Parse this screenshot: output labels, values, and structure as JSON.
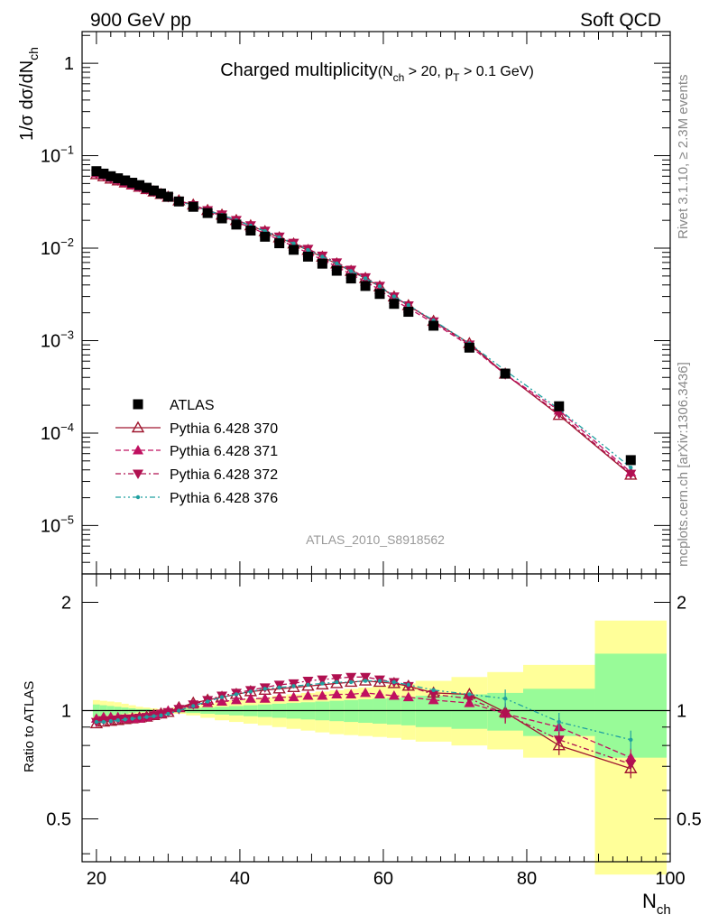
{
  "header": {
    "left": "900 GeV pp",
    "right": "Soft QCD"
  },
  "title": {
    "main": "Charged multiplicity",
    "paren_open": "(N",
    "sub1": "ch",
    "mid": " > 20, p",
    "sub2": "T",
    "end": " > 0.1 GeV)"
  },
  "side_texts": {
    "rivet": "Rivet 3.1.10, ≥ 2.3M events",
    "mcplots": "mcplots.cern.ch [arXiv:1306.3436]"
  },
  "analysis_label": "ATLAS_2010_S8918562",
  "axes": {
    "ylabel_main": "1/σ dσ/dN",
    "ylabel_main_sub": "ch",
    "ylabel_ratio": "Ratio to ATLAS",
    "xlabel": "N",
    "xlabel_sub": "ch",
    "xticks": [
      "20",
      "40",
      "60",
      "80",
      "100"
    ],
    "yticks_main": [
      {
        "base": "1",
        "exp": ""
      },
      {
        "base": "10",
        "exp": "−1"
      },
      {
        "base": "10",
        "exp": "−2"
      },
      {
        "base": "10",
        "exp": "−3"
      },
      {
        "base": "10",
        "exp": "−4"
      },
      {
        "base": "10",
        "exp": "−5"
      }
    ],
    "yticks_ratio": [
      "2",
      "1",
      "0.5"
    ]
  },
  "legend": [
    {
      "label": "ATLAS"
    },
    {
      "label": "Pythia 6.428 370"
    },
    {
      "label": "Pythia 6.428 371"
    },
    {
      "label": "Pythia 6.428 372"
    },
    {
      "label": "Pythia 6.428 376"
    }
  ],
  "colors": {
    "data": "#000000",
    "p370": "#a01830",
    "p371": "#c01060",
    "p372": "#b01050",
    "p376": "#20a0a0",
    "band_inner": "#98fb98",
    "band_outer": "#ffff99"
  },
  "chart_data": {
    "type": "scatter",
    "x_range": [
      18,
      100
    ],
    "main_ylim": [
      3e-06,
      2.2
    ],
    "main_log": true,
    "ratio_ylim": [
      0.38,
      2.4
    ],
    "ratio_log": true,
    "data_x": [
      20,
      21,
      22,
      23,
      24,
      25,
      26,
      27,
      28,
      29,
      30,
      31.5,
      33.5,
      35.5,
      37.5,
      39.5,
      41.5,
      43.5,
      45.5,
      47.5,
      49.5,
      51.5,
      53.5,
      55.5,
      57.5,
      59.5,
      61.5,
      63.5,
      67,
      72,
      77,
      84.5,
      94.5
    ],
    "data_y": [
      0.068,
      0.064,
      0.06,
      0.057,
      0.054,
      0.051,
      0.048,
      0.045,
      0.042,
      0.039,
      0.036,
      0.032,
      0.028,
      0.024,
      0.021,
      0.018,
      0.0155,
      0.0133,
      0.0113,
      0.0096,
      0.0081,
      0.0068,
      0.0057,
      0.0047,
      0.0039,
      0.0032,
      0.0025,
      0.00205,
      0.00145,
      0.00084,
      0.00044,
      0.000195,
      5.1e-05
    ],
    "series": [
      {
        "name": "Pythia 6.428 370",
        "ratio": [
          0.92,
          0.93,
          0.935,
          0.94,
          0.945,
          0.95,
          0.955,
          0.96,
          0.97,
          0.98,
          0.99,
          1.02,
          1.05,
          1.07,
          1.09,
          1.11,
          1.13,
          1.14,
          1.15,
          1.16,
          1.17,
          1.18,
          1.19,
          1.2,
          1.21,
          1.2,
          1.19,
          1.17,
          1.12,
          1.11,
          0.99,
          0.8,
          0.69
        ]
      },
      {
        "name": "Pythia 6.428 371",
        "ratio": [
          0.95,
          0.96,
          0.96,
          0.96,
          0.95,
          0.95,
          0.95,
          0.96,
          0.97,
          0.98,
          1.0,
          1.02,
          1.04,
          1.05,
          1.06,
          1.07,
          1.08,
          1.08,
          1.09,
          1.09,
          1.1,
          1.1,
          1.11,
          1.11,
          1.12,
          1.11,
          1.1,
          1.09,
          1.07,
          1.05,
          0.98,
          0.9,
          0.74
        ]
      },
      {
        "name": "Pythia 6.428 372",
        "ratio": [
          0.93,
          0.94,
          0.94,
          0.945,
          0.95,
          0.95,
          0.955,
          0.96,
          0.97,
          0.98,
          0.99,
          1.01,
          1.04,
          1.07,
          1.1,
          1.12,
          1.14,
          1.16,
          1.18,
          1.19,
          1.21,
          1.22,
          1.23,
          1.24,
          1.24,
          1.22,
          1.2,
          1.17,
          1.11,
          1.08,
          0.98,
          0.83,
          0.71
        ]
      },
      {
        "name": "Pythia 6.428 376",
        "ratio": [
          0.93,
          0.93,
          0.935,
          0.94,
          0.945,
          0.95,
          0.955,
          0.96,
          0.965,
          0.97,
          0.98,
          1.0,
          1.03,
          1.06,
          1.09,
          1.11,
          1.13,
          1.15,
          1.16,
          1.17,
          1.18,
          1.19,
          1.2,
          1.2,
          1.21,
          1.21,
          1.2,
          1.18,
          1.14,
          1.11,
          1.08,
          0.93,
          0.83
        ]
      }
    ],
    "bands": {
      "edges": [
        19.5,
        20.5,
        21.5,
        22.5,
        23.5,
        24.5,
        25.5,
        26.5,
        27.5,
        28.5,
        29.5,
        30.5,
        32.5,
        34.5,
        36.5,
        38.5,
        40.5,
        42.5,
        44.5,
        46.5,
        48.5,
        50.5,
        52.5,
        54.5,
        56.5,
        58.5,
        60.5,
        62.5,
        64.5,
        69.5,
        74.5,
        79.5,
        89.5,
        99.5
      ],
      "inner_lo": [
        0.96,
        0.965,
        0.97,
        0.975,
        0.98,
        0.985,
        0.99,
        0.99,
        0.995,
        0.995,
        0.997,
        0.99,
        0.985,
        0.98,
        0.975,
        0.97,
        0.965,
        0.96,
        0.955,
        0.95,
        0.945,
        0.94,
        0.935,
        0.93,
        0.925,
        0.92,
        0.915,
        0.91,
        0.9,
        0.89,
        0.88,
        0.85,
        0.74
      ],
      "inner_hi": [
        1.04,
        1.035,
        1.03,
        1.025,
        1.02,
        1.015,
        1.01,
        1.01,
        1.005,
        1.005,
        1.003,
        1.01,
        1.015,
        1.02,
        1.025,
        1.03,
        1.035,
        1.04,
        1.045,
        1.05,
        1.055,
        1.06,
        1.065,
        1.07,
        1.075,
        1.08,
        1.085,
        1.09,
        1.1,
        1.11,
        1.12,
        1.15,
        1.44
      ],
      "outer_lo": [
        0.93,
        0.935,
        0.94,
        0.945,
        0.955,
        0.965,
        0.975,
        0.98,
        0.985,
        0.99,
        0.993,
        0.98,
        0.97,
        0.955,
        0.94,
        0.93,
        0.92,
        0.91,
        0.9,
        0.89,
        0.88,
        0.87,
        0.86,
        0.855,
        0.85,
        0.845,
        0.84,
        0.83,
        0.82,
        0.8,
        0.78,
        0.74,
        0.35
      ],
      "outer_hi": [
        1.07,
        1.065,
        1.06,
        1.055,
        1.045,
        1.035,
        1.025,
        1.02,
        1.015,
        1.01,
        1.007,
        1.02,
        1.03,
        1.045,
        1.06,
        1.07,
        1.08,
        1.09,
        1.1,
        1.11,
        1.12,
        1.13,
        1.14,
        1.15,
        1.16,
        1.17,
        1.18,
        1.19,
        1.21,
        1.24,
        1.28,
        1.34,
        1.78
      ]
    }
  }
}
